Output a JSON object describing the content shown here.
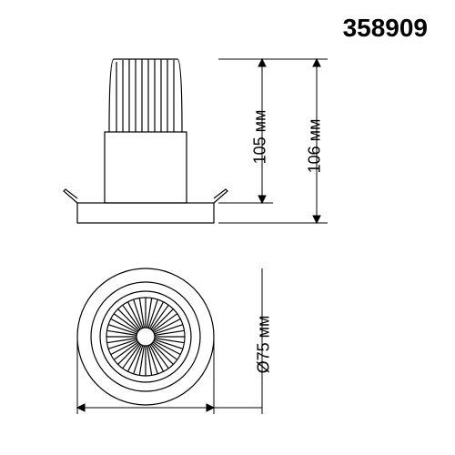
{
  "product_code": "358909",
  "dimensions": {
    "height_inner": "105 мм",
    "height_outer": "106 мм",
    "diameter": "Ø75 мм"
  },
  "style": {
    "stroke_color": "#000000",
    "stroke_width_main": 1.2,
    "stroke_width_dim": 1,
    "background": "#ffffff",
    "font_size_code": 28,
    "font_size_dim": 18,
    "arrow_size": 6
  },
  "geometry": {
    "type": "technical-drawing",
    "views": [
      "side",
      "bottom"
    ],
    "side_view": {
      "flange_width": 150,
      "body_width": 90,
      "heatsink_width": 80,
      "total_height": 190,
      "flange_height": 20,
      "body_height": 80,
      "heatsink_height": 90,
      "fin_count": 11
    },
    "bottom_view": {
      "outer_diameter": 150,
      "ring_diameter": 120,
      "inner_ring_diameter": 100,
      "cone_outer": 86,
      "cone_inner": 20,
      "ray_count": 40
    }
  }
}
